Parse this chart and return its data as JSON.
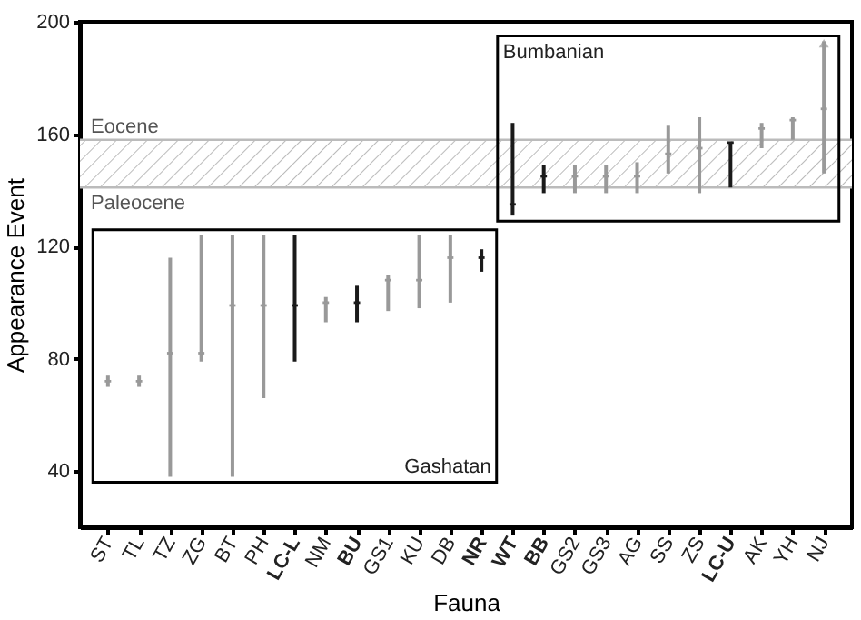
{
  "chart_data": {
    "type": "bar",
    "xlabel": "Fauna",
    "ylabel": "Appearance Event",
    "categories": [
      "ST",
      "TL",
      "TZ",
      "ZG",
      "BT",
      "PH",
      "LC-L",
      "NM",
      "BU",
      "GS1",
      "KU",
      "DB",
      "NR",
      "WT",
      "BB",
      "GS2",
      "GS3",
      "AG",
      "SS",
      "ZS",
      "LC-U",
      "AK",
      "YH",
      "NJ"
    ],
    "ylim": [
      20,
      200
    ],
    "yticks": [
      40,
      80,
      120,
      160,
      200
    ],
    "series": [
      {
        "type": "bar",
        "base": [
          70,
          70,
          38,
          79,
          38,
          66,
          79,
          93,
          93,
          97,
          98,
          100,
          111,
          131,
          139,
          139,
          139,
          139,
          146,
          139,
          141,
          155,
          158,
          146
        ],
        "values": [
          4,
          4,
          78,
          45,
          86,
          58,
          45,
          9,
          13,
          13,
          26,
          24,
          8,
          33,
          10,
          10,
          10,
          11,
          17,
          27,
          16,
          9,
          8,
          47
        ],
        "colors": [
          "#999999",
          "#999999",
          "#999999",
          "#999999",
          "#999999",
          "#999999",
          "#1a1a1a",
          "#999999",
          "#1a1a1a",
          "#999999",
          "#999999",
          "#999999",
          "#1a1a1a",
          "#1a1a1a",
          "#1a1a1a",
          "#999999",
          "#999999",
          "#999999",
          "#999999",
          "#999999",
          "#1a1a1a",
          "#999999",
          "#999999",
          "#999999"
        ]
      },
      {
        "type": "scatter",
        "x": [
          "ST",
          "TL",
          "TZ",
          "ZG",
          "BT",
          "PH",
          "LC-L",
          "NM",
          "BU",
          "GS1",
          "KU",
          "DB",
          "NR",
          "WT",
          "BB",
          "GS2",
          "GS3",
          "AG",
          "SS",
          "ZS",
          "LC-U",
          "AK",
          "YH",
          "NJ"
        ],
        "values": [
          72,
          72,
          82,
          82,
          99,
          99,
          99,
          100,
          100,
          108,
          108,
          116,
          116,
          135,
          145,
          145,
          145,
          145,
          153,
          155,
          157,
          162,
          165,
          169
        ],
        "colors": [
          "#999999",
          "#999999",
          "#999999",
          "#999999",
          "#999999",
          "#999999",
          "#1a1a1a",
          "#999999",
          "#1a1a1a",
          "#999999",
          "#999999",
          "#999999",
          "#1a1a1a",
          "#1a1a1a",
          "#1a1a1a",
          "#999999",
          "#999999",
          "#999999",
          "#999999",
          "#999999",
          "#1a1a1a",
          "#999999",
          "#999999",
          "#999999"
        ]
      }
    ],
    "bands": [
      {
        "axis": "y",
        "from": 141,
        "to": 158,
        "color": "#bbbbbb"
      }
    ],
    "ref_lines": [
      {
        "axis": "y",
        "value": 158,
        "label": "Eocene",
        "color": "#bbbbbb"
      },
      {
        "axis": "y",
        "value": 141,
        "label": "Paleocene",
        "color": "#bbbbbb"
      }
    ],
    "annotations": [
      "Gashatan",
      "Bumbanian"
    ]
  }
}
